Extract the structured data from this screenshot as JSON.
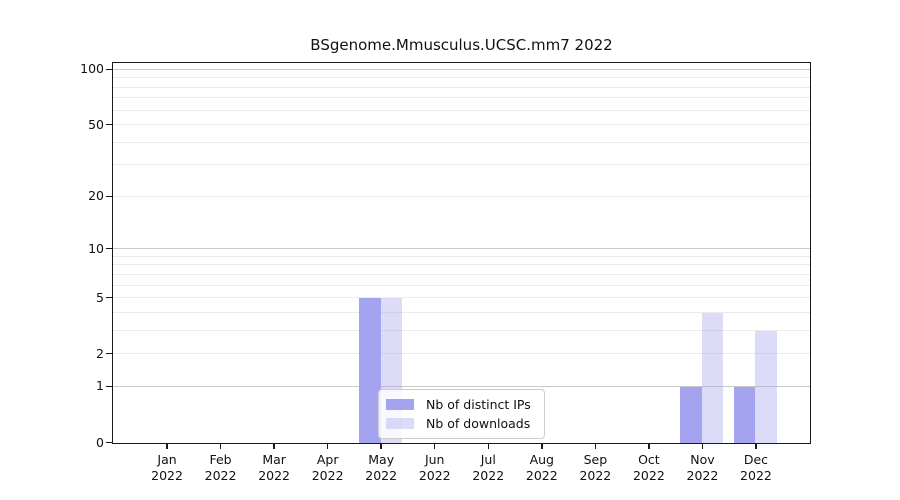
{
  "chart_data": {
    "type": "bar",
    "title": "BSgenome.Mmusculus.UCSC.mm7 2022",
    "x_tick_labels": [
      {
        "month": "Jan",
        "year": "2022"
      },
      {
        "month": "Feb",
        "year": "2022"
      },
      {
        "month": "Mar",
        "year": "2022"
      },
      {
        "month": "Apr",
        "year": "2022"
      },
      {
        "month": "May",
        "year": "2022"
      },
      {
        "month": "Jun",
        "year": "2022"
      },
      {
        "month": "Jul",
        "year": "2022"
      },
      {
        "month": "Aug",
        "year": "2022"
      },
      {
        "month": "Sep",
        "year": "2022"
      },
      {
        "month": "Oct",
        "year": "2022"
      },
      {
        "month": "Nov",
        "year": "2022"
      },
      {
        "month": "Dec",
        "year": "2022"
      }
    ],
    "series": [
      {
        "name": "Nb of distinct IPs",
        "color": "#a3a3f0",
        "fill_alpha": 1,
        "values": [
          0,
          0,
          0,
          0,
          5,
          0,
          0,
          0,
          0,
          0,
          1,
          1
        ]
      },
      {
        "name": "Nb of downloads",
        "color": "#a3a3f0",
        "fill_alpha": 0.38,
        "values": [
          0,
          0,
          0,
          0,
          5,
          0,
          0,
          0,
          0,
          0,
          4,
          3
        ]
      }
    ],
    "yscale": "log10(1+y)",
    "y_tick_labels": [
      "0",
      "1",
      "2",
      "5",
      "10",
      "20",
      "50",
      "100"
    ],
    "y_tick_values": [
      0,
      1,
      2,
      5,
      10,
      20,
      50,
      100
    ],
    "grid_minor_values": [
      2,
      3,
      4,
      5,
      6,
      7,
      8,
      9,
      20,
      30,
      40,
      50,
      60,
      70,
      80,
      90
    ],
    "grid_major_values": [
      1,
      10,
      100
    ],
    "ylim": [
      0,
      109
    ],
    "grid": "horizontal",
    "legend_position": "lower center"
  },
  "colors": {
    "bar_dark": "#a3a3f0",
    "bar_light": "#d9d9f8",
    "axis": "#1a1a1a",
    "grid_minor": "#ebebeb",
    "grid_major": "#c9c9c9"
  }
}
